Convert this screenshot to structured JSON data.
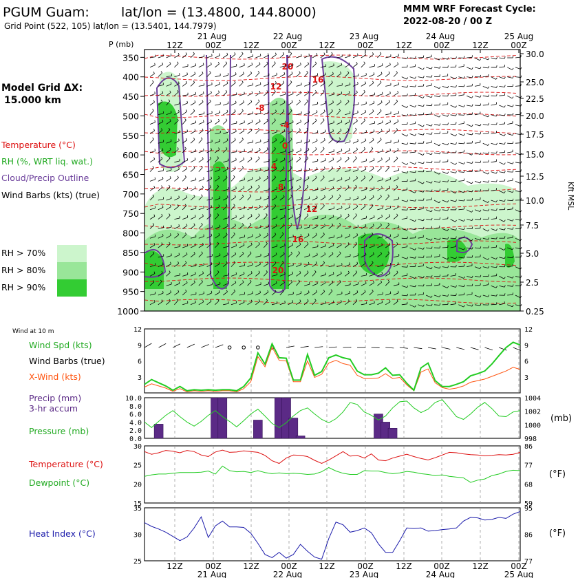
{
  "header": {
    "station": "PGUM Guam:",
    "latlon": "lat/lon = (13.4800, 144.8000)",
    "grid_point": "Grid Point (522, 105) lat/lon = (13.5401, 144.7979)",
    "model": "MMM WRF Forecast Cycle:",
    "cycle": "2022-08-20 / 00  Z"
  },
  "side": {
    "model_grid_label": "Model Grid ΔX:",
    "model_grid_value": "15.000 km",
    "legend_temp": "Temperature (°C)",
    "legend_rh": "RH (%, WRT liq. wat.)",
    "legend_cloud": "Cloud/Precip Outline",
    "legend_barbs": "Wind Barbs (kts) (true)",
    "rh70": "RH > 70%",
    "rh80": "RH > 80%",
    "rh90": "RH > 90%"
  },
  "colors": {
    "temp": "#dd1111",
    "rh70": "#ccf5cc",
    "rh80": "#99e699",
    "rh90": "#33cc33",
    "cloud": "#6a3d9a",
    "precip": "#5b2a86",
    "wind": "#22cc22",
    "xwind": "#ff5511",
    "dew": "#22cc22",
    "heat": "#1a1aaa"
  },
  "chart_data": [
    {
      "type": "cross-section",
      "panel": "upper",
      "p_label": "P (mb)",
      "right_label": "Kft MSL",
      "pressure_levels": [
        350,
        400,
        450,
        500,
        550,
        600,
        650,
        700,
        750,
        800,
        850,
        900,
        950,
        1000
      ],
      "height_ticks": [
        "30.0",
        "25.0",
        "22.5",
        "20.0",
        "17.5",
        "15.0",
        "12.5",
        "10.0",
        "7.5",
        "5.0",
        "2.5",
        "0.25"
      ],
      "time_ticks": [
        "12Z",
        "00Z",
        "12Z",
        "00Z",
        "12Z",
        "00Z",
        "12Z",
        "00Z",
        "12Z",
        "00Z"
      ],
      "date_ticks": [
        "21 Aug",
        "22 Aug",
        "23 Aug",
        "24 Aug",
        "25 Aug"
      ],
      "temp_contour_labels": [
        "-20",
        "-16",
        "-12",
        "-8",
        "-4",
        "0",
        "4",
        "8",
        "12",
        "16",
        "20"
      ]
    },
    {
      "type": "line",
      "panel": "wind",
      "title": "Wind at 10 m",
      "legend": [
        "Wind Spd (kts)",
        "Wind Barbs (true)",
        "X-Wind (kts)"
      ],
      "y_ticks": [
        "3",
        "6",
        "9",
        "12"
      ],
      "ylim": [
        0,
        12
      ],
      "series": [
        {
          "name": "Wind Spd (kts)",
          "values": [
            1.6,
            2.5,
            1.9,
            1.3,
            0.5,
            1.2,
            0.4,
            0.6,
            0.5,
            0.6,
            0.5,
            0.6,
            0.6,
            0.4,
            1.2,
            2.8,
            7.5,
            5.4,
            9.2,
            6.6,
            6.5,
            2.4,
            2.4,
            7.2,
            3.3,
            4.0,
            6.6,
            7.1,
            6.6,
            6.3,
            4.1,
            3.4,
            3.4,
            3.7,
            4.7,
            3.3,
            3.4,
            1.8,
            0.5,
            4.7,
            5.6,
            2.3,
            1.2,
            1.2,
            1.6,
            2.1,
            3.2,
            3.6,
            4.1,
            5.4,
            7.0,
            8.5,
            9.5,
            9.0
          ]
        },
        {
          "name": "X-Wind (kts)",
          "values": [
            1.1,
            1.7,
            1.3,
            0.9,
            0.3,
            0.8,
            0.2,
            0.4,
            0.3,
            0.4,
            0.3,
            0.4,
            0.4,
            0.2,
            0.8,
            2.1,
            6.8,
            4.9,
            8.6,
            6.1,
            6.0,
            2.1,
            2.1,
            6.0,
            2.9,
            3.5,
            5.6,
            6.1,
            5.5,
            5.2,
            3.3,
            2.7,
            2.7,
            2.8,
            3.6,
            2.7,
            2.9,
            1.5,
            0.4,
            3.9,
            4.5,
            1.9,
            1.0,
            0.7,
            0.9,
            1.3,
            2.0,
            2.3,
            2.6,
            3.1,
            3.6,
            4.1,
            4.8,
            4.4
          ]
        }
      ]
    },
    {
      "type": "bar+line",
      "panel": "precip",
      "legend": [
        "Precip (mm)",
        "3-hr accum",
        "Pressure (mb)"
      ],
      "left_ticks": [
        "0.0",
        "2.0",
        "4.0",
        "6.0",
        "8.0",
        "10.0"
      ],
      "right_ticks": [
        "998",
        "1000",
        "1002",
        "1004"
      ],
      "right_label": "(mb)",
      "ylim": [
        0,
        10
      ],
      "precip_bars": [
        {
          "t": 2,
          "mm": 3.5
        },
        {
          "t": 10,
          "mm": 10.0
        },
        {
          "t": 11,
          "mm": 10.0
        },
        {
          "t": 16,
          "mm": 4.5
        },
        {
          "t": 19,
          "mm": 10.0
        },
        {
          "t": 20,
          "mm": 10.0
        },
        {
          "t": 21,
          "mm": 5.0
        },
        {
          "t": 22,
          "mm": 0.6
        },
        {
          "t": 33,
          "mm": 6.0
        },
        {
          "t": 34,
          "mm": 4.0
        },
        {
          "t": 35,
          "mm": 2.5
        }
      ],
      "pressure": [
        1000.4,
        999.6,
        1000.5,
        1001.4,
        1002.1,
        1001.2,
        1000.4,
        999.8,
        1000.5,
        1001.4,
        1002.1,
        1001.2,
        1000.5,
        999.7,
        1000.6,
        1001.6,
        1002.3,
        1001.3,
        1000.2,
        999.6,
        1000.3,
        1001.3,
        1002.1,
        1002.5,
        1001.6,
        1000.8,
        1000.3,
        1000.9,
        1001.9,
        1003.3,
        1003.0,
        1001.9,
        1001.4,
        1000.7,
        1001.3,
        1002.5,
        1003.4,
        1003.5,
        1002.5,
        1001.8,
        1002.3,
        1003.3,
        1003.7,
        1002.5,
        1001.2,
        1000.8,
        1001.6,
        1002.6,
        1003.3,
        1002.4,
        1001.3,
        1001.2,
        1001.9,
        1002.1
      ]
    },
    {
      "type": "line",
      "panel": "temperature",
      "legend": [
        "Temperature (°C)",
        "Dewpoint (°C)"
      ],
      "left_ticks": [
        "15",
        "20",
        "25",
        "30"
      ],
      "right_ticks": [
        "59",
        "68",
        "77",
        "86"
      ],
      "right_label": "(°F)",
      "ylim": [
        15,
        30
      ],
      "series": [
        {
          "name": "Temperature (°C)",
          "values": [
            28.5,
            27.8,
            28.2,
            28.8,
            28.6,
            28.2,
            28.8,
            28.5,
            27.6,
            27.2,
            28.4,
            28.9,
            28.3,
            28.4,
            28.7,
            28.5,
            28.3,
            27.5,
            26.1,
            25.4,
            26.8,
            27.6,
            27.5,
            27.2,
            26.2,
            25.4,
            26.3,
            27.4,
            28.5,
            27.3,
            27.5,
            26.8,
            27.9,
            26.3,
            26.1,
            26.8,
            27.3,
            27.8,
            27.2,
            26.7,
            26.3,
            26.9,
            27.6,
            28.3,
            28.2,
            27.9,
            27.7,
            27.6,
            27.4,
            27.5,
            27.7,
            27.6,
            27.8,
            28.3
          ]
        },
        {
          "name": "Dewpoint (°C)",
          "values": [
            22.0,
            22.4,
            22.6,
            22.6,
            22.8,
            23.0,
            23.0,
            23.0,
            23.1,
            23.4,
            22.6,
            24.7,
            23.5,
            23.2,
            23.3,
            23.0,
            23.5,
            23.0,
            22.7,
            22.9,
            22.7,
            22.8,
            22.7,
            22.5,
            22.6,
            23.2,
            24.3,
            23.4,
            22.8,
            22.5,
            22.5,
            23.5,
            23.4,
            23.4,
            23.0,
            22.7,
            22.9,
            23.3,
            23.1,
            22.7,
            22.5,
            22.2,
            22.4,
            22.0,
            21.8,
            21.6,
            20.4,
            21.0,
            21.3,
            22.2,
            22.6,
            23.3,
            23.6,
            23.5
          ]
        }
      ]
    },
    {
      "type": "line",
      "panel": "heat_index",
      "legend": [
        "Heat Index (°C)"
      ],
      "left_ticks": [
        "25",
        "30",
        "35"
      ],
      "right_ticks": [
        "77",
        "86",
        "95"
      ],
      "right_label": "(°F)",
      "ylim": [
        25,
        35
      ],
      "series": [
        {
          "name": "Heat Index (°C)",
          "values": [
            32.2,
            31.5,
            31.0,
            30.4,
            29.6,
            28.8,
            29.5,
            31.2,
            33.3,
            29.4,
            31.6,
            32.5,
            31.4,
            31.4,
            31.3,
            30.2,
            28.3,
            26.2,
            25.6,
            26.6,
            25.5,
            26.2,
            28.1,
            26.8,
            25.7,
            25.3,
            29.2,
            32.3,
            31.8,
            30.4,
            30.7,
            31.2,
            30.3,
            28.2,
            26.6,
            26.6,
            28.8,
            31.2,
            31.1,
            31.2,
            30.6,
            30.7,
            30.9,
            31.0,
            31.2,
            32.5,
            33.2,
            33.1,
            32.7,
            32.8,
            33.2,
            33.0,
            33.8,
            34.3
          ]
        }
      ]
    }
  ]
}
